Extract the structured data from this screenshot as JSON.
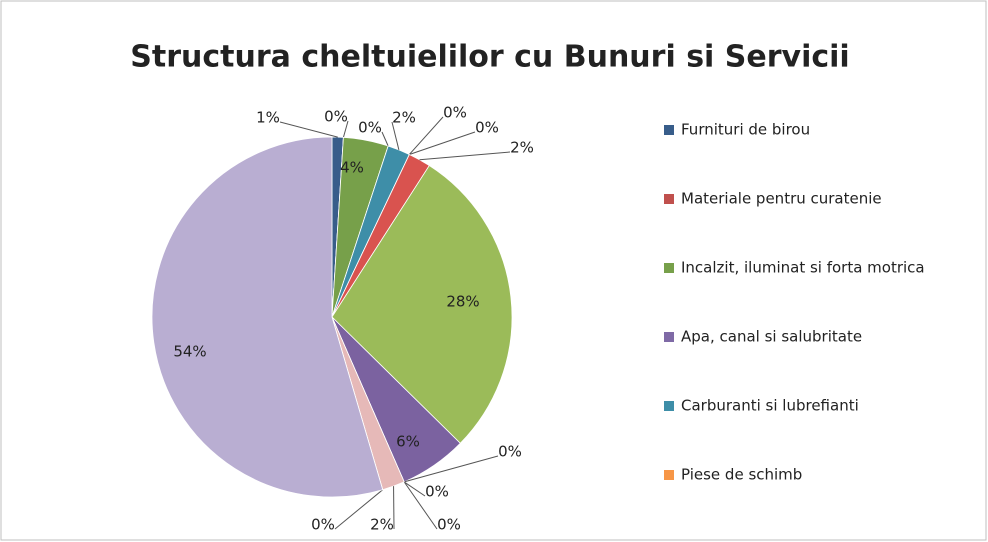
{
  "chart_data": {
    "type": "pie",
    "title": "Structura cheltuielilor cu Bunuri si Servicii",
    "categories": [
      "Furnituri de birou",
      "Materiale pentru curatenie",
      "Incalzit, iluminat si forta motrica",
      "Apa, canal si salubritate",
      "Carburanti si lubrefianti",
      "Piese de schimb",
      null,
      null,
      null,
      null,
      null,
      null,
      null,
      null,
      null,
      null
    ],
    "values": [
      1,
      0,
      4,
      0,
      2,
      0,
      0,
      2,
      28,
      6,
      0,
      0,
      0,
      2,
      0,
      54
    ],
    "value_labels": [
      "1%",
      "0%",
      "4%",
      "0%",
      "2%",
      "0%",
      "0%",
      "2%",
      "28%",
      "6%",
      "0%",
      "0%",
      "0%",
      "2%",
      "0%",
      "54%"
    ],
    "colors": [
      "#385D8A",
      "#C0504D",
      "#77A04A",
      "#7F6AA6",
      "#3E8EA8",
      "#F79646",
      "#4F81BD",
      "#D9534F",
      "#9BBB59",
      "#7B62A0",
      "#4BACC6",
      "#F79646",
      "#A6B8D8",
      "#E6B9B8",
      "#D7E4BD",
      "#B9AED2"
    ],
    "legend": "right"
  }
}
